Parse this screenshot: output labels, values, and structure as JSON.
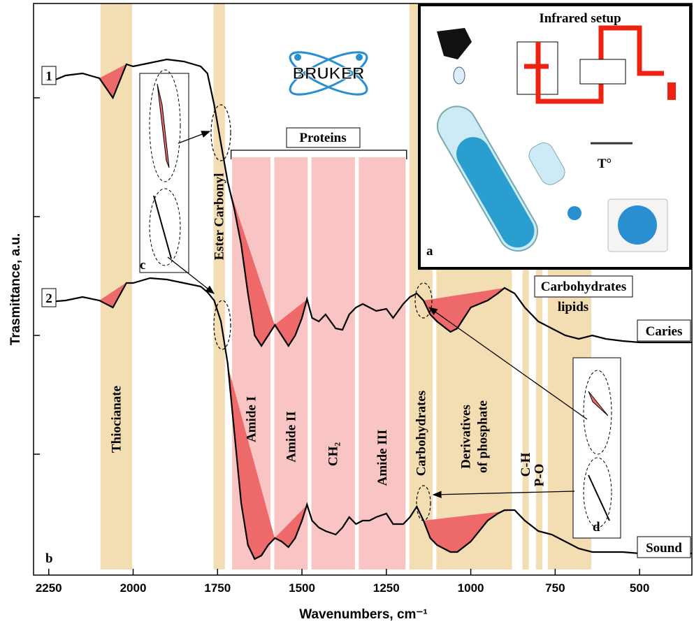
{
  "chart_data": {
    "type": "line",
    "x_label": "Wavenumbers, cm⁻¹",
    "y_label": "Trasmittance, a.u.",
    "xlim": [
      2295,
      345
    ],
    "xticks": [
      2250,
      2000,
      1750,
      1500,
      1250,
      1000,
      750,
      500
    ],
    "ylim": [
      0,
      818
    ],
    "yticks": [
      173,
      343,
      513,
      683
    ],
    "x": [
      2250,
      2200,
      2150,
      2100,
      2060,
      2020,
      2000,
      1950,
      1900,
      1850,
      1800,
      1780,
      1760,
      1740,
      1720,
      1700,
      1680,
      1660,
      1640,
      1620,
      1600,
      1580,
      1560,
      1540,
      1520,
      1500,
      1485,
      1470,
      1450,
      1430,
      1400,
      1380,
      1360,
      1340,
      1320,
      1300,
      1280,
      1250,
      1230,
      1200,
      1180,
      1160,
      1140,
      1120,
      1100,
      1060,
      1040,
      1000,
      950,
      920,
      900,
      870,
      840,
      800,
      760,
      720,
      680,
      640,
      600,
      550,
      500,
      450,
      400,
      345
    ],
    "series": [
      {
        "name": "Caries",
        "number": "1",
        "color": "#000000",
        "values": [
          705,
          715,
          718,
          711,
          683,
          731,
          728,
          733,
          738,
          735,
          728,
          718,
          673,
          618,
          563,
          523,
          473,
          403,
          343,
          328,
          343,
          358,
          343,
          328,
          343,
          368,
          395,
          368,
          363,
          373,
          353,
          351,
          373,
          383,
          388,
          383,
          378,
          381,
          368,
          388,
          398,
          403,
          393,
          373,
          363,
          348,
          353,
          383,
          393,
          403,
          411,
          403,
          383,
          363,
          353,
          343,
          338,
          343,
          338,
          335,
          333,
          333,
          333,
          333
        ]
      },
      {
        "name": "Sound",
        "number": "2",
        "color": "#000000",
        "values": [
          391,
          393,
          398,
          393,
          383,
          418,
          418,
          425,
          423,
          418,
          413,
          405,
          393,
          363,
          303,
          203,
          103,
          43,
          23,
          28,
          43,
          53,
          48,
          40,
          53,
          78,
          101,
          78,
          68,
          63,
          58,
          68,
          83,
          73,
          78,
          78,
          83,
          88,
          73,
          73,
          83,
          98,
          78,
          53,
          43,
          33,
          33,
          48,
          78,
          88,
          93,
          93,
          78,
          63,
          58,
          48,
          38,
          33,
          33,
          33,
          31,
          31,
          31,
          31
        ]
      }
    ],
    "bands": [
      {
        "label": "Thiocianate",
        "range": [
          2100,
          2000
        ],
        "color": "#f3ddb3"
      },
      {
        "label": "Ester Carbonyl",
        "range": [
          1765,
          1725
        ],
        "color": "#f3ddb3"
      },
      {
        "label": "Amide I",
        "range": [
          1710,
          1590
        ],
        "color": "#f8c4c4"
      },
      {
        "label": "Amide II",
        "range": [
          1585,
          1480
        ],
        "color": "#f8c4c4"
      },
      {
        "label": "CH₂",
        "range": [
          1475,
          1340
        ],
        "color": "#f8c4c4"
      },
      {
        "label": "Amide III",
        "range": [
          1335,
          1190
        ],
        "color": "#f8c4c4"
      },
      {
        "label": "Carbohydrates",
        "range": [
          1185,
          1110
        ],
        "color": "#f3ddb3"
      },
      {
        "label": [
          "Derivatives",
          "of phosphate"
        ],
        "range": [
          1105,
          875
        ],
        "color": "#f3ddb3"
      },
      {
        "label": "C-H",
        "range": [
          850,
          825
        ],
        "color": "#f3ddb3"
      },
      {
        "label": "P-O",
        "range": [
          810,
          785
        ],
        "color": "#f3ddb3"
      },
      {
        "range": [
          775,
          640
        ],
        "color": "#f3ddb3"
      }
    ],
    "proteins": {
      "label": "Proteins",
      "range": [
        1710,
        1190
      ]
    },
    "top_labels": {
      "carbohydrates": "Carbohydrates",
      "lipids": "lipids"
    },
    "panel_labels": {
      "a": "a",
      "b": "b",
      "c": "c",
      "d": "d"
    },
    "logo": "BRUKER",
    "inset": {
      "title": "Infrared setup",
      "temperature": "T°"
    }
  }
}
